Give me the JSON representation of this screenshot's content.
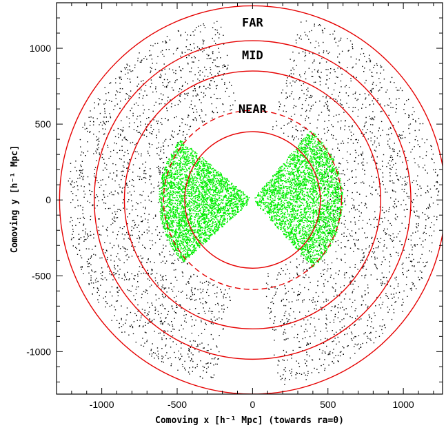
{
  "chart_data": {
    "type": "scatter",
    "title": "",
    "xlabel": "Comoving x [h⁻¹ Mpc] (towards ra=0)",
    "ylabel": "Comoving y [h⁻¹ Mpc]",
    "xlim": [
      -1300,
      1260
    ],
    "ylim": [
      -1280,
      1300
    ],
    "xticks": [
      -1000,
      -500,
      0,
      500,
      1000
    ],
    "yticks": [
      -1000,
      -500,
      0,
      500,
      1000
    ],
    "xtick_labels": [
      "-1000",
      "-500",
      "0",
      "500",
      "1000"
    ],
    "ytick_labels": [
      "-1000",
      "-500",
      "0",
      "500",
      "1000"
    ],
    "grid": false,
    "circles": [
      {
        "radius": 450,
        "style": "solid",
        "color": "#e60000"
      },
      {
        "radius": 590,
        "style": "dashed",
        "color": "#e60000"
      },
      {
        "radius": 850,
        "style": "solid",
        "color": "#e60000"
      },
      {
        "radius": 1050,
        "style": "solid",
        "color": "#e60000"
      },
      {
        "radius": 1280,
        "style": "solid",
        "color": "#e60000"
      }
    ],
    "annotations": [
      {
        "text": "FAR",
        "x": 0,
        "y": 1170
      },
      {
        "text": "MID",
        "x": 0,
        "y": 955
      },
      {
        "text": "NEAR",
        "x": 0,
        "y": 600
      }
    ],
    "series": [
      {
        "color": "#000000",
        "description_regions": [
          {
            "side": "left",
            "r_min": 600,
            "r_max": 1230,
            "angle_min_deg": 100,
            "angle_max_deg": 258
          },
          {
            "side": "right",
            "r_min": 480,
            "r_max": 1240,
            "angle_min_deg": -82,
            "angle_max_deg": 75
          }
        ]
      },
      {
        "color": "#00ee00",
        "description_regions": [
          {
            "side": "left",
            "r_min": 25,
            "r_max": 620,
            "angle_min_deg": 140,
            "angle_max_deg": 222
          },
          {
            "side": "right",
            "r_min": 20,
            "r_max": 600,
            "angle_min_deg": -48,
            "angle_max_deg": 50
          }
        ]
      }
    ]
  }
}
